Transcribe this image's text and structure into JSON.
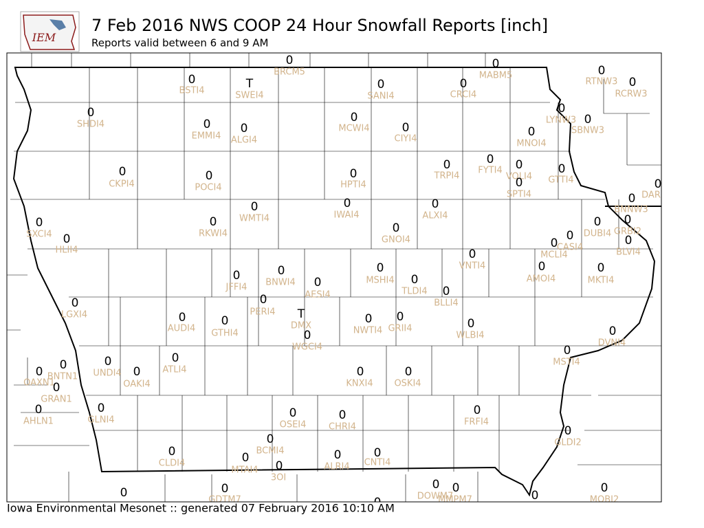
{
  "header": {
    "title": "7 Feb 2016 NWS COOP 24 Hour Snowfall Reports [inch]",
    "subtitle": "Reports valid between 6 and 9 AM",
    "logo": "IEM"
  },
  "footer": "Iowa Environmental Mesonet :: generated 07 February 2016 10:10 AM",
  "stations": [
    {
      "value": 0,
      "label": "BRCM5"
    },
    {
      "value": 0,
      "label": "MABM5"
    },
    {
      "value": 0,
      "label": "BSTI4"
    },
    {
      "value": "T",
      "label": "SWEI4"
    },
    {
      "value": 0,
      "label": "SANI4"
    },
    {
      "value": 0,
      "label": "CRCI4"
    },
    {
      "value": 0,
      "label": "RTNW3"
    },
    {
      "value": 0,
      "label": "RCRW3"
    },
    {
      "value": 0,
      "label": "SHDI4"
    },
    {
      "value": 0,
      "label": "MCWI4"
    },
    {
      "value": 0,
      "label": "LYNW3"
    },
    {
      "value": 0,
      "label": "SBNW3"
    },
    {
      "value": 0,
      "label": "EMMI4"
    },
    {
      "value": 0,
      "label": "ALGI4"
    },
    {
      "value": 0,
      "label": "CIYI4"
    },
    {
      "value": 0,
      "label": "MNOI4"
    },
    {
      "value": 0,
      "label": "CKPI4"
    },
    {
      "value": 0,
      "label": "POCI4"
    },
    {
      "value": 0,
      "label": "HPTI4"
    },
    {
      "value": 0,
      "label": "TRPI4"
    },
    {
      "value": 0,
      "label": "FYTI4"
    },
    {
      "value": 0,
      "label": "VOLI4"
    },
    {
      "value": 0,
      "label": "SPTI4"
    },
    {
      "value": 0,
      "label": "GTTI4"
    },
    {
      "value": 0,
      "label": "DAR"
    },
    {
      "value": 0,
      "label": "BNNW3"
    },
    {
      "value": 0,
      "label": "WMTI4"
    },
    {
      "value": 0,
      "label": "IWAI4"
    },
    {
      "value": 0,
      "label": "ALXI4"
    },
    {
      "value": 0,
      "label": "SXCI4"
    },
    {
      "value": 0,
      "label": "HLII4"
    },
    {
      "value": 0,
      "label": "RKWI4"
    },
    {
      "value": 0,
      "label": "GNOI4"
    },
    {
      "value": 0,
      "label": "DUBI4"
    },
    {
      "value": 0,
      "label": "GRBI2"
    },
    {
      "value": 0,
      "label": "CASI4"
    },
    {
      "value": 0,
      "label": "MCLI4"
    },
    {
      "value": 0,
      "label": "BLVI4"
    },
    {
      "value": 0,
      "label": "VNTI4"
    },
    {
      "value": 0,
      "label": "AMOI4"
    },
    {
      "value": 0,
      "label": "MKTI4"
    },
    {
      "value": 0,
      "label": "JFFI4"
    },
    {
      "value": 0,
      "label": "BNWI4"
    },
    {
      "value": 0,
      "label": "MSHI4"
    },
    {
      "value": 0,
      "label": "TLDI4"
    },
    {
      "value": 0,
      "label": "AESI4"
    },
    {
      "value": 0,
      "label": "BLLI4"
    },
    {
      "value": 0,
      "label": "PERI4"
    },
    {
      "value": 0,
      "label": "LGXI4"
    },
    {
      "value": "T",
      "label": "DMX"
    },
    {
      "value": 0,
      "label": "AUDI4"
    },
    {
      "value": 0,
      "label": "GTHI4"
    },
    {
      "value": 0,
      "label": "NWTI4"
    },
    {
      "value": 0,
      "label": "GRII4"
    },
    {
      "value": 0,
      "label": "WLBI4"
    },
    {
      "value": 0,
      "label": "DVNI4"
    },
    {
      "value": 0,
      "label": "WGCI4"
    },
    {
      "value": 0,
      "label": "ATLI4"
    },
    {
      "value": 0,
      "label": "UNDI4"
    },
    {
      "value": 0,
      "label": "OAKI4"
    },
    {
      "value": 0,
      "label": "MSTI4"
    },
    {
      "value": 0,
      "label": "BNTN1"
    },
    {
      "value": 0,
      "label": "OAXN1"
    },
    {
      "value": 0,
      "label": "GRAN1"
    },
    {
      "value": 0,
      "label": "KNXI4"
    },
    {
      "value": 0,
      "label": "OSKI4"
    },
    {
      "value": 0,
      "label": "GLNI4"
    },
    {
      "value": 0,
      "label": "AHLN1"
    },
    {
      "value": 0,
      "label": "OSEI4"
    },
    {
      "value": 0,
      "label": "CHRI4"
    },
    {
      "value": 0,
      "label": "FRFI4"
    },
    {
      "value": 0,
      "label": "GLDI2"
    },
    {
      "value": 0,
      "label": "BCMI4"
    },
    {
      "value": 0,
      "label": "CLDI4"
    },
    {
      "value": 0,
      "label": "MTAI4"
    },
    {
      "value": 0,
      "label": "ALRI4"
    },
    {
      "value": 0,
      "label": "CNTI4"
    },
    {
      "value": 0,
      "label": "3OI"
    },
    {
      "value": 0,
      "label": "DOWM7"
    },
    {
      "value": 0,
      "label": "MMPM7"
    },
    {
      "value": 0
    },
    {
      "value": 0,
      "label": "GDTM7"
    },
    {
      "value": 0,
      "label": "MOBI2"
    },
    {
      "value": 0
    },
    {
      "value": 0
    }
  ]
}
